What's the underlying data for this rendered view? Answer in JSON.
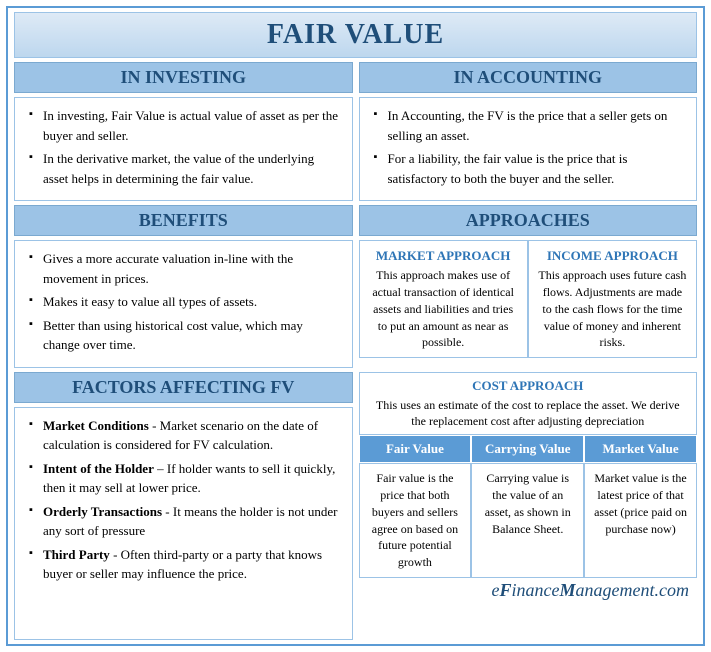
{
  "colors": {
    "border": "#5b9bd5",
    "header_bg": "#9cc3e6",
    "header_text": "#1f4e79",
    "title_gradient_top": "#deeaf6",
    "title_gradient_bottom": "#bdd7ee",
    "approach_title": "#2e75b6",
    "table_header_bg": "#5b9bd5",
    "table_header_text": "#ffffff"
  },
  "main_title": "FAIR VALUE",
  "investing": {
    "header": "IN INVESTING",
    "items": [
      "In investing, Fair Value is actual value of asset as per the buyer and seller.",
      "In the derivative market, the value of the underlying asset helps in determining the fair value."
    ]
  },
  "accounting": {
    "header": "IN ACCOUNTING",
    "items": [
      "In Accounting, the FV is the price that a seller gets on selling an asset.",
      "For a liability, the fair value is the price that is satisfactory to both the buyer and the seller."
    ]
  },
  "benefits": {
    "header": "BENEFITS",
    "items": [
      "Gives a more accurate valuation in-line with the movement in prices.",
      "Makes it easy to value all types of assets.",
      "Better than using historical cost value, which may change over time."
    ]
  },
  "approaches": {
    "header": "APPROACHES",
    "market": {
      "title": "MARKET APPROACH",
      "text": "This approach makes use of actual transaction of identical assets and liabilities and tries to put an amount as near as possible."
    },
    "income": {
      "title": "INCOME APPROACH",
      "text": "This approach uses future cash flows. Adjustments are made to the cash flows for the time value of money and inherent risks."
    },
    "cost": {
      "title": "COST APPROACH",
      "text": "This uses an estimate of the cost to replace the asset. We derive the replacement cost after adjusting depreciation"
    }
  },
  "factors": {
    "header": "FACTORS AFFECTING FV",
    "items": [
      {
        "bold": "Market Conditions",
        "sep": " - ",
        "text": "Market scenario on the date of calculation is considered for FV calculation."
      },
      {
        "bold": "Intent of the Holder",
        "sep": " – ",
        "text": "If holder wants to sell it quickly, then it may sell at lower price."
      },
      {
        "bold": "Orderly Transactions",
        "sep": " - ",
        "text": "It means the holder is not under any sort of pressure"
      },
      {
        "bold": "Third Party",
        "sep": " - ",
        "text": "Often third-party or a party that knows buyer or seller may influence the price."
      }
    ]
  },
  "value_table": {
    "headers": [
      "Fair Value",
      "Carrying Value",
      "Market Value"
    ],
    "cells": [
      "Fair value is the price that both buyers and sellers agree on based on future potential growth",
      "Carrying value is the value of an asset, as shown in Balance Sheet.",
      "Market value is the latest price of that asset (price paid on purchase now)"
    ]
  },
  "footer": {
    "e": "e",
    "f": "F",
    "inance": "inance",
    "m": "M",
    "anagement": "anagement",
    "dotcom": ".com"
  }
}
